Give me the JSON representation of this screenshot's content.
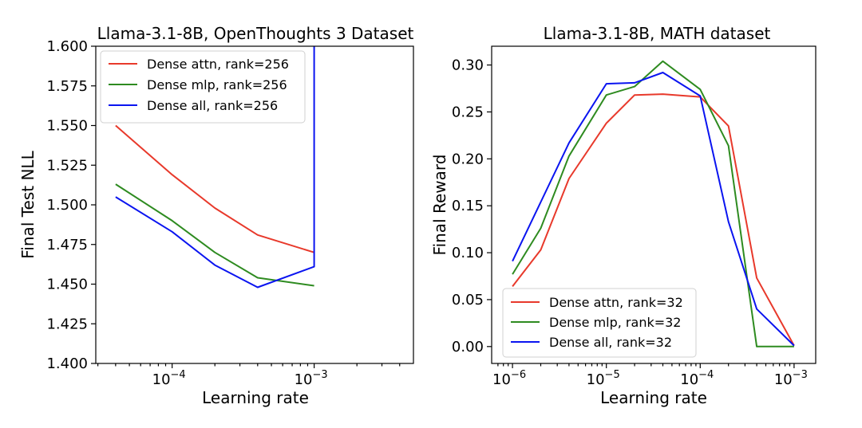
{
  "chart_data": [
    {
      "type": "line",
      "title": "Llama-3.1-8B, OpenThoughts 3 Dataset",
      "xlabel": "Learning rate",
      "ylabel": "Final Test NLL",
      "xscale": "log",
      "xlim": [
        2.9e-05,
        0.005
      ],
      "ylim": [
        1.4,
        1.6
      ],
      "yticks": [
        1.4,
        1.425,
        1.45,
        1.475,
        1.5,
        1.525,
        1.55,
        1.575,
        1.6
      ],
      "ytick_labels": [
        "1.400",
        "1.425",
        "1.450",
        "1.475",
        "1.500",
        "1.525",
        "1.550",
        "1.575",
        "1.600"
      ],
      "xticks": [
        {
          "value": 0.0001,
          "base": "10",
          "exp": "−4"
        },
        {
          "value": 0.001,
          "base": "10",
          "exp": "−3"
        }
      ],
      "legend_position": "upper-left",
      "series": [
        {
          "name": "Dense attn, rank=256",
          "color": "#e8392b",
          "x": [
            4e-05,
            0.0001,
            0.0002,
            0.0004,
            0.001
          ],
          "y": [
            1.55,
            1.519,
            1.498,
            1.481,
            1.47
          ]
        },
        {
          "name": "Dense mlp, rank=256",
          "color": "#2e8b20",
          "x": [
            4e-05,
            0.0001,
            0.0002,
            0.0004,
            0.001
          ],
          "y": [
            1.513,
            1.49,
            1.47,
            1.454,
            1.449
          ]
        },
        {
          "name": "Dense all, rank=256",
          "color": "#0a14f0",
          "x": [
            4e-05,
            0.0001,
            0.0002,
            0.0004,
            0.001,
            0.001
          ],
          "y": [
            1.505,
            1.483,
            1.462,
            1.448,
            1.461,
            1.6
          ]
        }
      ]
    },
    {
      "type": "line",
      "title": "Llama-3.1-8B, MATH dataset",
      "xlabel": "Learning rate",
      "ylabel": "Final Reward",
      "xscale": "log",
      "xlim": [
        6e-07,
        0.0017
      ],
      "ylim": [
        -0.018,
        0.32
      ],
      "yticks": [
        0.0,
        0.05,
        0.1,
        0.15,
        0.2,
        0.25,
        0.3
      ],
      "ytick_labels": [
        "0.00",
        "0.05",
        "0.10",
        "0.15",
        "0.20",
        "0.25",
        "0.30"
      ],
      "xticks": [
        {
          "value": 1e-06,
          "base": "10",
          "exp": "−6"
        },
        {
          "value": 1e-05,
          "base": "10",
          "exp": "−5"
        },
        {
          "value": 0.0001,
          "base": "10",
          "exp": "−4"
        },
        {
          "value": 0.001,
          "base": "10",
          "exp": "−3"
        }
      ],
      "legend_position": "lower-left",
      "series": [
        {
          "name": "Dense attn, rank=32",
          "color": "#e8392b",
          "x": [
            1e-06,
            2e-06,
            4e-06,
            1e-05,
            2e-05,
            4e-05,
            0.0001,
            0.0002,
            0.0004,
            0.001
          ],
          "y": [
            0.064,
            0.103,
            0.179,
            0.238,
            0.268,
            0.269,
            0.266,
            0.235,
            0.073,
            0.001
          ]
        },
        {
          "name": "Dense mlp, rank=32",
          "color": "#2e8b20",
          "x": [
            1e-06,
            2e-06,
            4e-06,
            1e-05,
            2e-05,
            4e-05,
            0.0001,
            0.0002,
            0.0004,
            0.001
          ],
          "y": [
            0.077,
            0.126,
            0.203,
            0.268,
            0.277,
            0.304,
            0.274,
            0.214,
            0.0,
            0.0
          ]
        },
        {
          "name": "Dense all, rank=32",
          "color": "#0a14f0",
          "x": [
            1e-06,
            2e-06,
            4e-06,
            1e-05,
            2e-05,
            4e-05,
            0.0001,
            0.0002,
            0.0004,
            0.001
          ],
          "y": [
            0.091,
            0.154,
            0.217,
            0.28,
            0.281,
            0.292,
            0.267,
            0.133,
            0.04,
            0.001
          ]
        }
      ]
    }
  ]
}
